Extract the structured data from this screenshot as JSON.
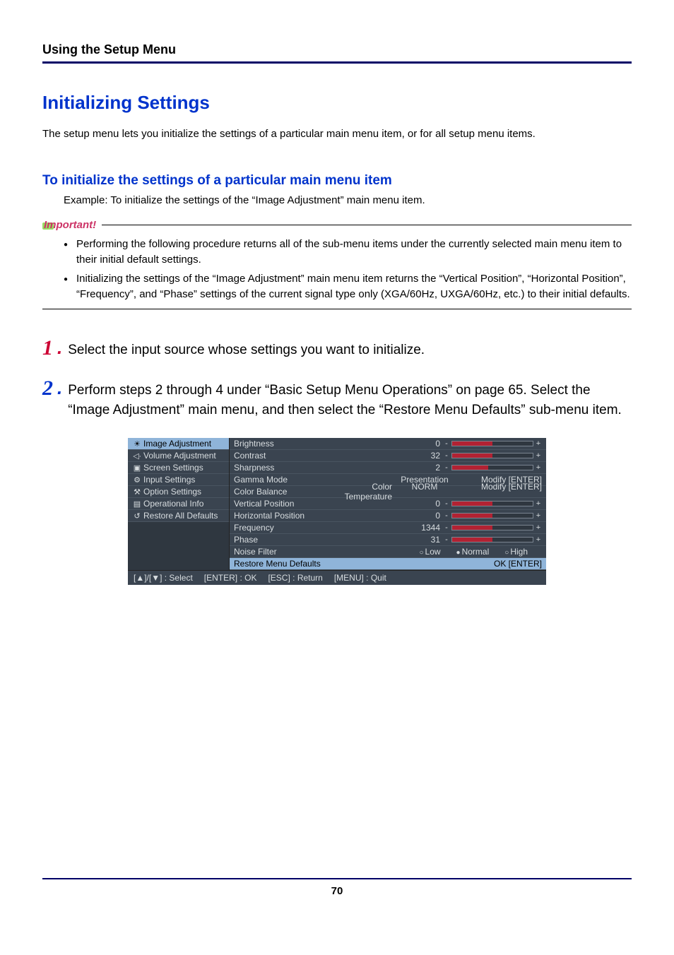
{
  "running_head": "Using the Setup Menu",
  "section_title": "Initializing Settings",
  "intro": "The setup menu lets you initialize the settings of a particular main menu item, or for all setup menu items.",
  "subsection_title": "To initialize the settings of a particular main menu item",
  "example": "Example: To initialize the settings of the “Image Adjustment” main menu item.",
  "important_label": "Important!",
  "bullets": [
    "Performing the following procedure returns all of the sub-menu items under the currently selected main menu item to their initial default settings.",
    "Initializing the settings of the “Image Adjustment” main menu item returns the “Vertical Position”, “Horizontal Position”, “Frequency”, and “Phase” settings of the current signal type only (XGA/60Hz, UXGA/60Hz, etc.) to their initial defaults."
  ],
  "steps": {
    "s1_num": "1",
    "s1_text": "Select the input source whose settings you want to initialize.",
    "s2_num": "2",
    "s2_text": "Perform steps 2 through 4 under “Basic Setup Menu Operations” on page 65. Select the “Image Adjustment” main menu, and then select the “Restore Menu Defaults” sub-menu item."
  },
  "osd": {
    "left_items": [
      {
        "icon": "☀",
        "label": "Image Adjustment",
        "selected": true
      },
      {
        "icon": "◁∙",
        "label": "Volume Adjustment",
        "selected": false
      },
      {
        "icon": "▣",
        "label": "Screen Settings",
        "selected": false
      },
      {
        "icon": "⚙",
        "label": "Input Settings",
        "selected": false
      },
      {
        "icon": "⚒",
        "label": "Option Settings",
        "selected": false
      },
      {
        "icon": "▤",
        "label": "Operational Info",
        "selected": false
      },
      {
        "icon": "↺",
        "label": "Restore All Defaults",
        "selected": false
      }
    ],
    "right_rows": [
      {
        "label": "Brightness",
        "kind": "slider",
        "value": "0",
        "pct": 50
      },
      {
        "label": "Contrast",
        "kind": "slider",
        "value": "32",
        "pct": 50
      },
      {
        "label": "Sharpness",
        "kind": "slider",
        "value": "2",
        "pct": 45
      },
      {
        "label": "Gamma Mode",
        "kind": "enum",
        "mid": "",
        "tag": "Presentation",
        "action": "Modify [ENTER]"
      },
      {
        "label": "Color Balance",
        "kind": "enum",
        "mid": "Color Temperature",
        "tag": "NORM",
        "action": "Modify [ENTER]"
      },
      {
        "label": "Vertical Position",
        "kind": "slider",
        "value": "0",
        "pct": 50
      },
      {
        "label": "Horizontal Position",
        "kind": "slider",
        "value": "0",
        "pct": 50
      },
      {
        "label": "Frequency",
        "kind": "slider",
        "value": "1344",
        "pct": 50
      },
      {
        "label": "Phase",
        "kind": "slider",
        "value": "31",
        "pct": 50
      },
      {
        "label": "Noise Filter",
        "kind": "radio",
        "options": [
          "Low",
          "Normal",
          "High"
        ],
        "selected": 1
      },
      {
        "label": "Restore Menu Defaults",
        "kind": "action",
        "action": "OK [ENTER]",
        "highlight": true
      }
    ],
    "footer": [
      "[▲]/[▼] : Select",
      "[ENTER] : OK",
      "[ESC] : Return",
      "[MENU] : Quit"
    ],
    "colors": {
      "bg": "#3a4450",
      "sel_bg": "#8fb4d9",
      "slider_fill": "#b22233",
      "text": "#d8dde0"
    }
  },
  "page_number": "70"
}
